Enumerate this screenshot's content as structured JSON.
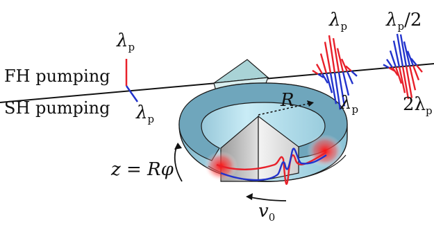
{
  "labels": {
    "fh_pumping": "FH pumping",
    "sh_pumping": "SH pumping",
    "lambda_p_fh_top": "λ",
    "lambda_p_sh_bottom": "λ",
    "lambda_p_right_top": "λ",
    "lambda_p_right_bottom": "λ",
    "lambda_half": "λ",
    "lambda_half_suffix": "/2",
    "two_lambda_prefix": "2λ",
    "sub_p": "p",
    "radius": "R",
    "z_eq": "z = Rφ",
    "v_label": "v",
    "v_sub": "0"
  },
  "colors": {
    "red": "#e8202a",
    "blue": "#2233cc",
    "ring_top": "#6fa6bc",
    "ring_side": "#9fd0e3",
    "prism": "#a9d3d6"
  }
}
